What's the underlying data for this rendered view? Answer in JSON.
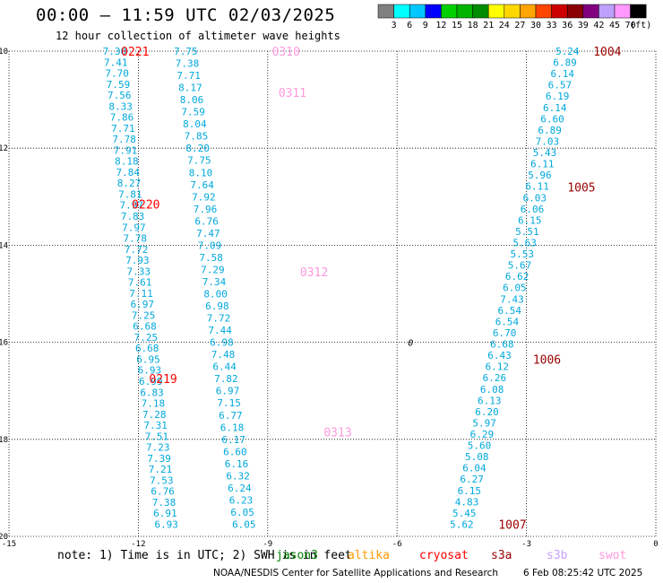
{
  "header": {
    "title": "00:00 — 11:59 UTC 02/03/2025",
    "subtitle": "12 hour collection of altimeter wave heights"
  },
  "colorbar": {
    "labels": [
      "3",
      "6",
      "9",
      "12",
      "15",
      "18",
      "21",
      "24",
      "27",
      "30",
      "33",
      "36",
      "39",
      "42",
      "45",
      "70"
    ],
    "unit": "(ft)",
    "colors": [
      "#808080",
      "#00ffff",
      "#00c8ff",
      "#0000ff",
      "#00d000",
      "#00b400",
      "#008c00",
      "#ffff00",
      "#ffd700",
      "#ffa500",
      "#ff4500",
      "#cc0000",
      "#8b0000",
      "#800080",
      "#c0a0ff",
      "#ff99ff",
      "#000000"
    ]
  },
  "footer": {
    "note": "note: 1) Time is in UTC; 2) SWH is in feet",
    "credit": "NOAA/NESDIS Center for Satellite Applications and Research",
    "timestamp": "6 Feb 08:25:42 UTC 2025",
    "satellites": [
      {
        "name": "jason3",
        "color": "#008000"
      },
      {
        "name": "altika",
        "color": "#ff9900"
      },
      {
        "name": "cryosat",
        "color": "#ff0000"
      },
      {
        "name": "s3a",
        "color": "#990000"
      },
      {
        "name": "s3b",
        "color": "#c8a0ff"
      },
      {
        "name": "swot",
        "color": "#ff99dd"
      }
    ]
  },
  "chart_data": {
    "type": "scatter",
    "title": "00:00 — 11:59 UTC 02/03/2025",
    "subtitle": "12 hour collection of altimeter wave heights",
    "xlim": [
      -15,
      0
    ],
    "ylim": [
      -20,
      -10
    ],
    "xticks": [
      "-15",
      "-12",
      "-9",
      "-6",
      "-3",
      "0"
    ],
    "yticks": [
      "-10",
      "-12",
      "-14",
      "-16",
      "-18",
      "-20"
    ],
    "grid": true,
    "annotation_marker": "0",
    "tracks": [
      {
        "satellite": "cryosat",
        "color": "#ff0000",
        "time_labels": [
          {
            "text": "0221",
            "x": -12.4,
            "y": -10.0
          },
          {
            "text": "0220",
            "x": -12.15,
            "y": -13.15
          },
          {
            "text": "0219",
            "x": -11.75,
            "y": -16.75
          }
        ],
        "x_start": -12.55,
        "x_end": -11.35,
        "y_start": -10.0,
        "y_end": -19.75,
        "values": [
          "7.30",
          "7.41",
          "7.70",
          "7.59",
          "7.56",
          "8.33",
          "7.86",
          "7.71",
          "7.78",
          "7.91",
          "8.18",
          "7.84",
          "8.27",
          "7.81",
          "7.97",
          "7.83",
          "7.97",
          "7.78",
          "7.72",
          "7.93",
          "7.33",
          "7.61",
          "7.11",
          "6.97",
          "7.25",
          "6.68",
          "7.25",
          "6.68",
          "6.95",
          "6.93",
          "6.99",
          "6.83",
          "7.18",
          "7.28",
          "7.31",
          "7.51",
          "7.23",
          "7.39",
          "7.21",
          "7.53",
          "6.76",
          "7.38",
          "6.91",
          "6.93"
        ]
      },
      {
        "satellite": "swot",
        "color": "#ff99dd",
        "time_labels": [
          {
            "text": "0310",
            "x": -8.9,
            "y": -10.0
          },
          {
            "text": "0311",
            "x": -8.75,
            "y": -10.85
          },
          {
            "text": "0312",
            "x": -8.25,
            "y": -14.55
          },
          {
            "text": "0313",
            "x": -7.7,
            "y": -17.85
          }
        ],
        "x_start": -10.9,
        "x_end": -9.55,
        "y_start": -10.0,
        "y_end": -19.75,
        "values": [
          "7.75",
          "7.38",
          "7.71",
          "8.17",
          "8.06",
          "7.59",
          "8.04",
          "7.85",
          "8.20",
          "7.75",
          "8.10",
          "7.64",
          "7.92",
          "7.96",
          "6.76",
          "7.47",
          "7.09",
          "7.58",
          "7.29",
          "7.34",
          "8.00",
          "6.98",
          "7.72",
          "7.44",
          "6.98",
          "7.48",
          "6.44",
          "7.82",
          "6.97",
          "7.15",
          "6.77",
          "6.18",
          "6.17",
          "6.60",
          "6.16",
          "6.32",
          "6.24",
          "6.23",
          "6.05",
          "6.05"
        ]
      },
      {
        "satellite": "s3a",
        "color": "#990000",
        "time_labels": [
          {
            "text": "1004",
            "x": -1.45,
            "y": -10.0
          },
          {
            "text": "1005",
            "x": -2.05,
            "y": -12.8
          },
          {
            "text": "1006",
            "x": -2.85,
            "y": -16.35
          },
          {
            "text": "1007",
            "x": -3.65,
            "y": -19.75
          }
        ],
        "x_start": -2.05,
        "x_end": -4.5,
        "y_start": -10.0,
        "y_end": -19.75,
        "values": [
          "5.24",
          "6.89",
          "6.14",
          "6.57",
          "6.19",
          "6.14",
          "6.60",
          "6.89",
          "7.03",
          "5.43",
          "6.11",
          "5.96",
          "6.11",
          "6.03",
          "6.06",
          "6.15",
          "5.51",
          "5.63",
          "5.53",
          "5.67",
          "6.62",
          "6.05",
          "7.43",
          "6.54",
          "6.54",
          "6.70",
          "6.68",
          "6.43",
          "6.12",
          "6.26",
          "6.08",
          "6.13",
          "6.20",
          "5.97",
          "6.29",
          "5.60",
          "5.08",
          "6.04",
          "6.27",
          "6.15",
          "4.83",
          "5.45",
          "5.62"
        ]
      }
    ]
  }
}
